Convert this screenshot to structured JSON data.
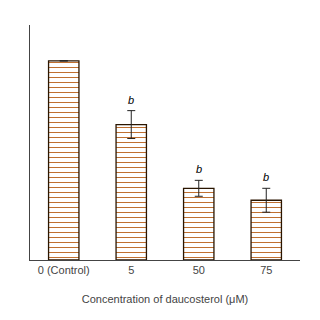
{
  "chart_data": {
    "type": "bar",
    "categories": [
      "0 (Control)",
      "5",
      "50",
      "75"
    ],
    "values": [
      100,
      68,
      36,
      30
    ],
    "errors": [
      0,
      7,
      4,
      6
    ],
    "annotations": [
      null,
      "b",
      "b",
      "b"
    ],
    "xlabel": "Concentration of daucosterol (μM)",
    "color": "#F0C090",
    "ylim": [
      0,
      118
    ],
    "tick_labels": "x",
    "grid": false
  }
}
